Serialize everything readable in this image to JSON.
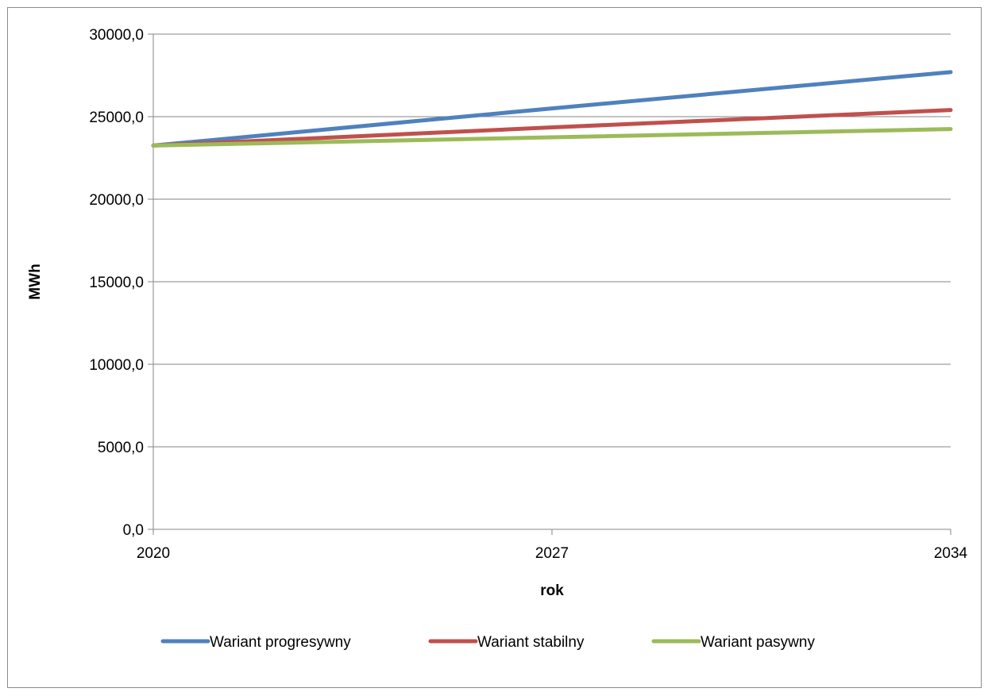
{
  "chart_data": {
    "type": "line",
    "xlabel": "rok",
    "ylabel": "MWh",
    "x": [
      2020,
      2027,
      2034
    ],
    "x_ticks": [
      "2020",
      "2027",
      "2034"
    ],
    "ylim": [
      0,
      30000
    ],
    "y_ticks": [
      "0,0",
      "5000,0",
      "10000,0",
      "15000,0",
      "20000,0",
      "25000,0",
      "30000,0"
    ],
    "grid": true,
    "legend_position": "bottom",
    "series": [
      {
        "name": "Wariant progresywny",
        "color": "#4f81bd",
        "values": [
          23250,
          25500,
          27700
        ]
      },
      {
        "name": "Wariant stabilny",
        "color": "#c0504d",
        "values": [
          23250,
          24350,
          25400
        ]
      },
      {
        "name": "Wariant pasywny",
        "color": "#9bbb59",
        "values": [
          23250,
          23750,
          24250
        ]
      }
    ]
  }
}
